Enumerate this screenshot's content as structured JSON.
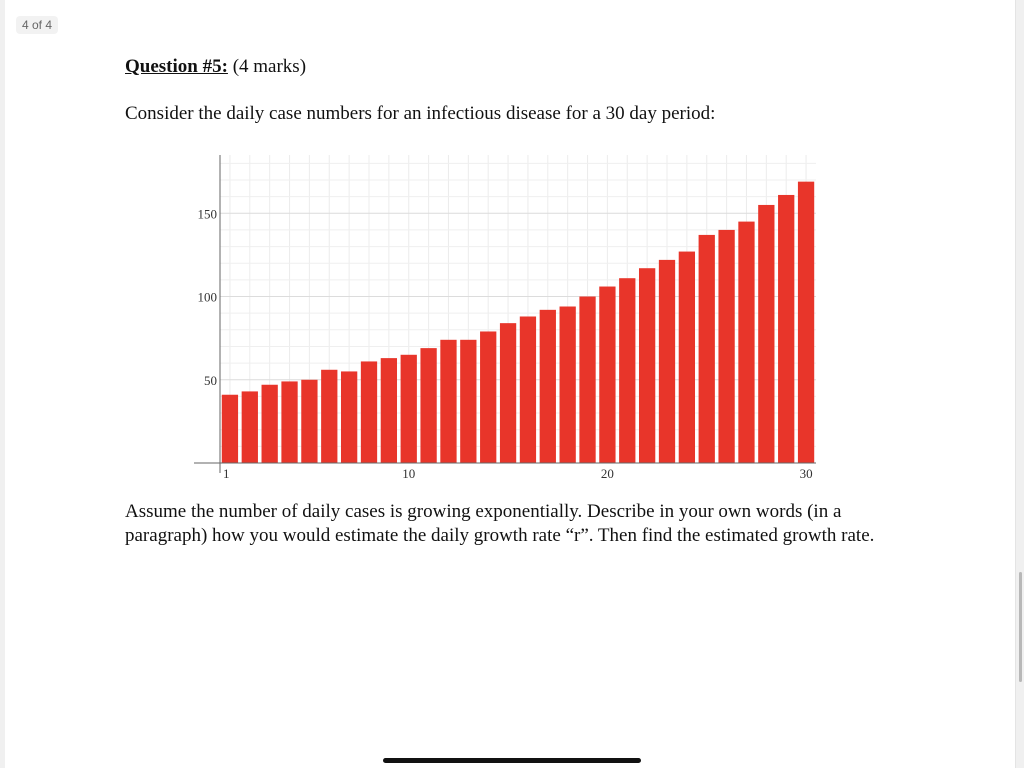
{
  "viewer": {
    "page_indicator": "4 of 4"
  },
  "question": {
    "title": "Question #5:",
    "marks": "(4 marks)",
    "intro": "Consider the daily case numbers for an infectious disease for a 30 day period:",
    "body": "Assume the number of daily cases is growing exponentially. Describe in your own words (in a paragraph) how you would estimate the daily growth rate “r”. Then find the estimated growth rate."
  },
  "chart_data": {
    "type": "bar",
    "x": [
      1,
      2,
      3,
      4,
      5,
      6,
      7,
      8,
      9,
      10,
      11,
      12,
      13,
      14,
      15,
      16,
      17,
      18,
      19,
      20,
      21,
      22,
      23,
      24,
      25,
      26,
      27,
      28,
      29,
      30
    ],
    "values": [
      41,
      43,
      47,
      49,
      50,
      56,
      55,
      61,
      63,
      65,
      69,
      74,
      74,
      79,
      84,
      88,
      92,
      94,
      100,
      106,
      111,
      117,
      122,
      127,
      137,
      140,
      145,
      155,
      161,
      169
    ],
    "xticks": [
      1,
      10,
      20,
      30
    ],
    "yticks": [
      50,
      100,
      150
    ],
    "ylim": [
      0,
      185
    ],
    "xlim": [
      0.5,
      30.5
    ],
    "bar_color": "#e8352a",
    "grid": true,
    "title": "",
    "xlabel": "",
    "ylabel": ""
  }
}
